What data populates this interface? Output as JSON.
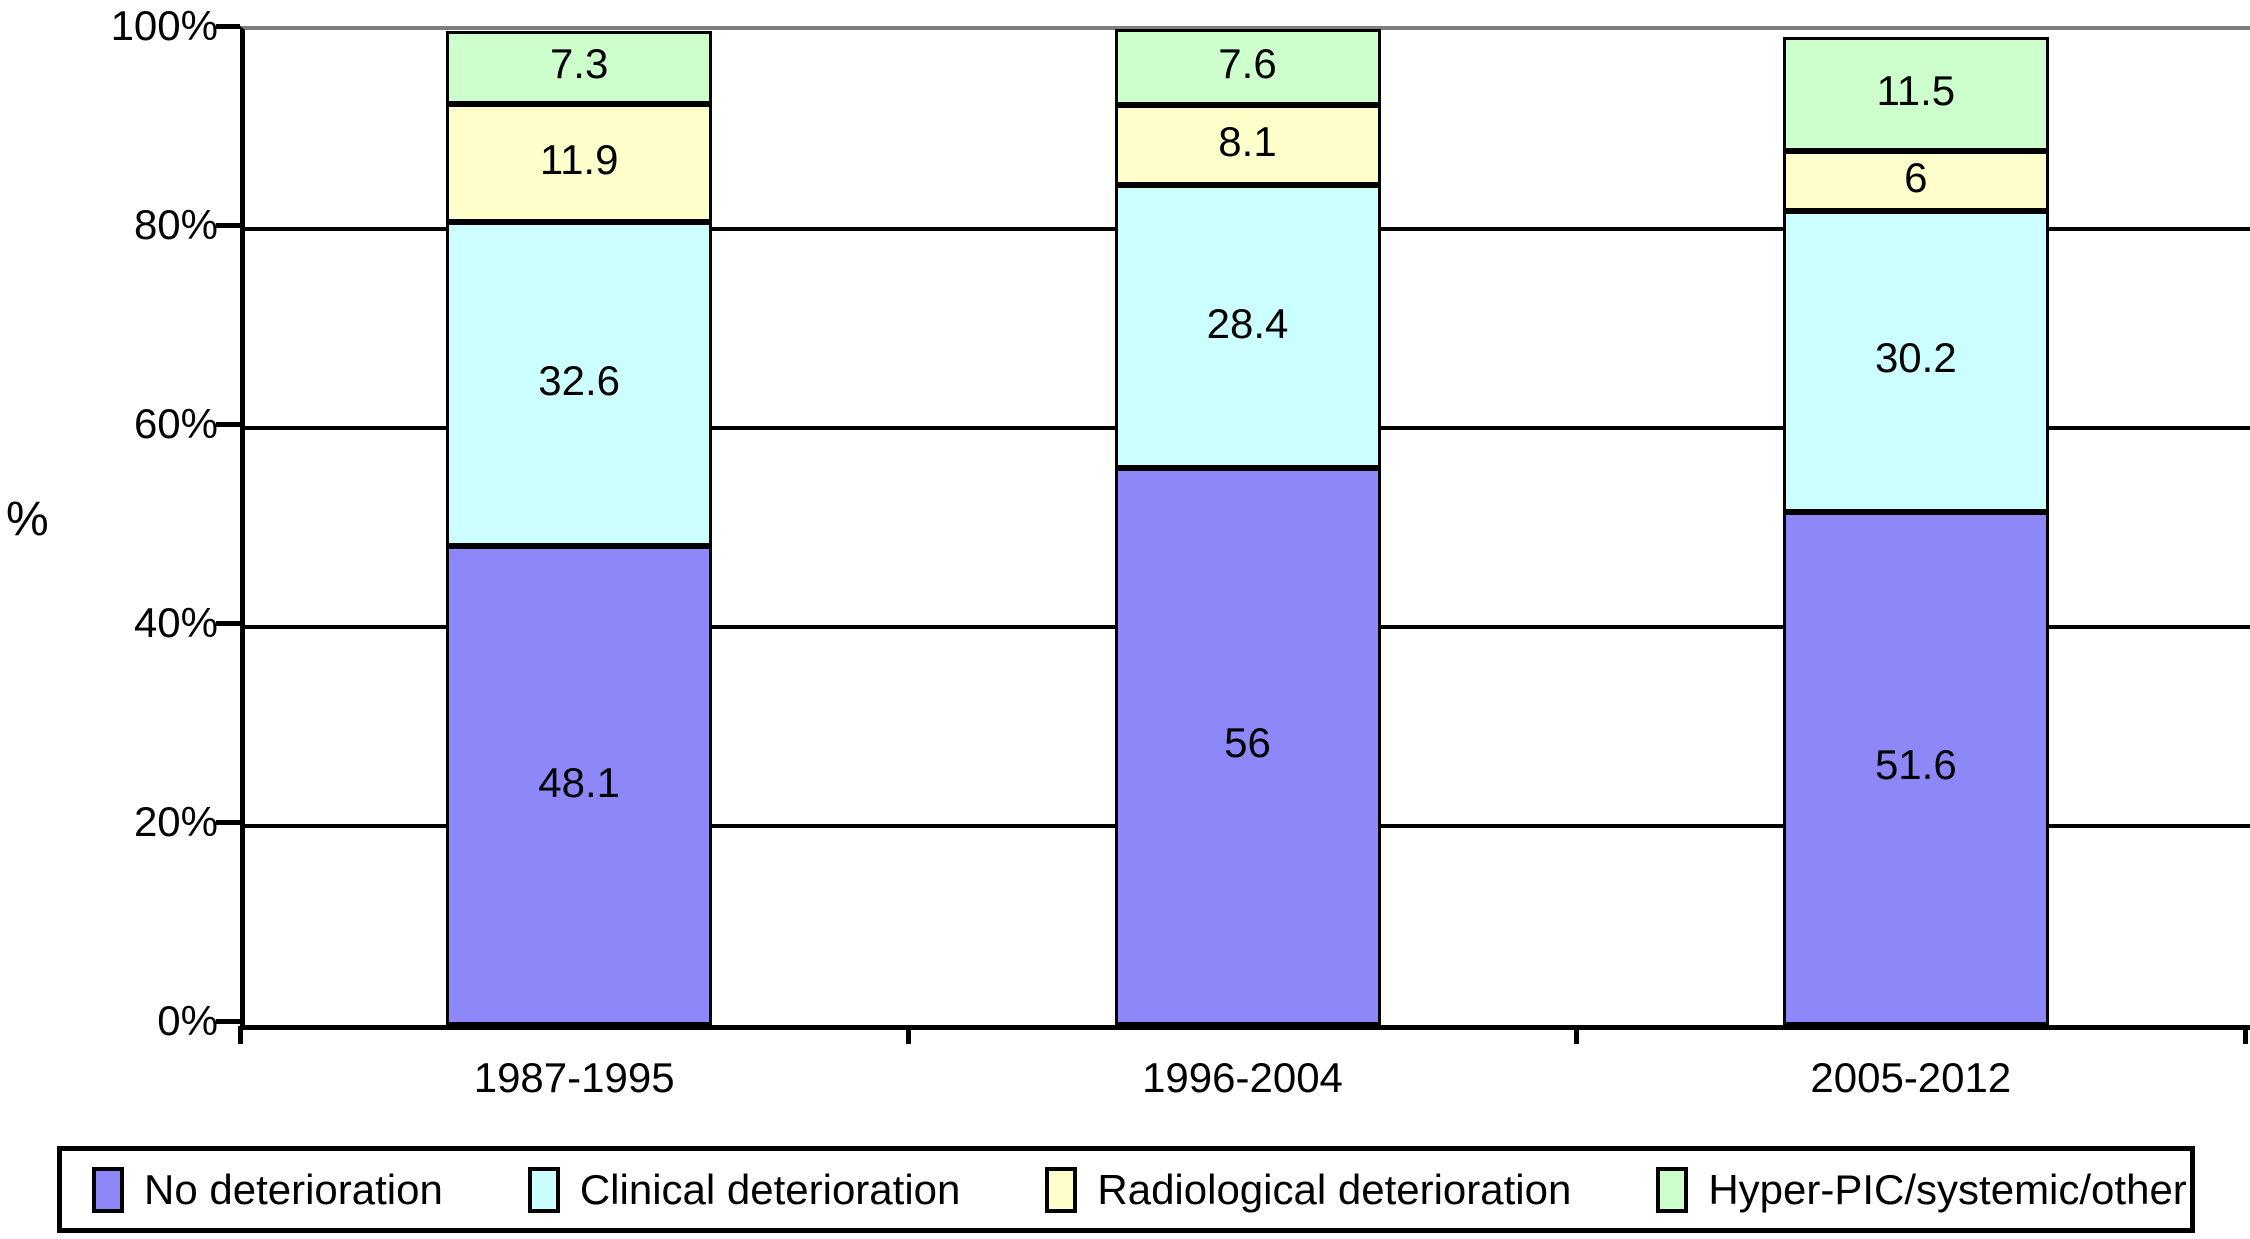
{
  "chart_data": {
    "type": "bar",
    "stacked": true,
    "orientation": "vertical",
    "title": "",
    "ylabel": "%",
    "xlabel": "",
    "categories": [
      "1987-1995",
      "1996-2004",
      "2005-2012"
    ],
    "series": [
      {
        "name": "No deterioration",
        "color": "#8d87f7",
        "values": [
          48.1,
          56,
          51.6
        ]
      },
      {
        "name": "Clinical deterioration",
        "color": "#ccffff",
        "values": [
          32.6,
          28.4,
          30.2
        ]
      },
      {
        "name": "Radiological deterioration",
        "color": "#ffffcc",
        "values": [
          11.9,
          8.1,
          6
        ]
      },
      {
        "name": "Hyper-PIC/systemic/other",
        "color": "#ccffcc",
        "values": [
          7.3,
          7.6,
          11.5
        ]
      }
    ],
    "y_ticks": [
      "0%",
      "20%",
      "40%",
      "60%",
      "80%",
      "100%"
    ],
    "ylim": [
      0,
      100
    ],
    "grid": true,
    "gridline_color": "#000000",
    "frame_color": "#7f7f7f",
    "legend_position": "bottom",
    "value_labels_shown": true
  }
}
